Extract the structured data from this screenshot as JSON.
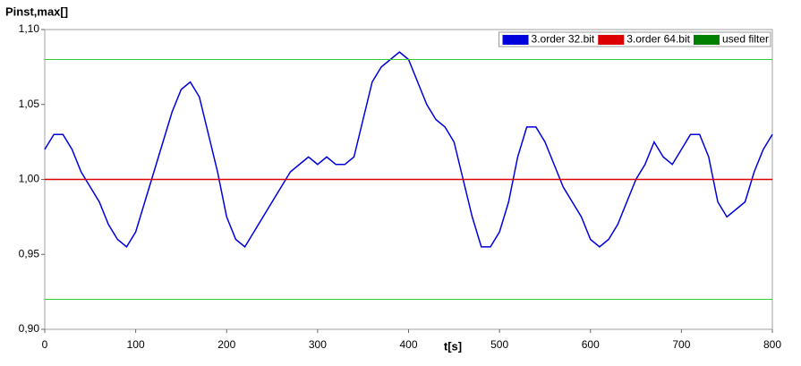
{
  "chart_data": {
    "type": "line",
    "title": "Pinst,max[]",
    "x_label": "t[s]",
    "x": [
      0,
      10,
      20,
      30,
      40,
      50,
      60,
      70,
      80,
      90,
      100,
      110,
      120,
      130,
      140,
      150,
      160,
      170,
      180,
      190,
      200,
      210,
      220,
      230,
      240,
      250,
      260,
      270,
      280,
      290,
      300,
      310,
      320,
      330,
      340,
      350,
      360,
      370,
      380,
      390,
      400,
      410,
      420,
      430,
      440,
      450,
      460,
      470,
      480,
      490,
      500,
      510,
      520,
      530,
      540,
      550,
      560,
      570,
      580,
      590,
      600,
      610,
      620,
      630,
      640,
      650,
      660,
      670,
      680,
      690,
      700,
      710,
      720,
      730,
      740,
      750,
      760,
      770,
      780,
      790,
      800
    ],
    "series": [
      {
        "name": "3.order 32.bit",
        "color": "#0000dd",
        "values": [
          1.02,
          1.03,
          1.03,
          1.02,
          1.005,
          0.995,
          0.985,
          0.97,
          0.96,
          0.955,
          0.965,
          0.985,
          1.005,
          1.025,
          1.045,
          1.06,
          1.065,
          1.055,
          1.03,
          1.005,
          0.975,
          0.96,
          0.955,
          0.965,
          0.975,
          0.985,
          0.995,
          1.005,
          1.01,
          1.015,
          1.01,
          1.015,
          1.01,
          1.01,
          1.015,
          1.04,
          1.065,
          1.075,
          1.08,
          1.085,
          1.08,
          1.065,
          1.05,
          1.04,
          1.035,
          1.025,
          1.0,
          0.975,
          0.955,
          0.955,
          0.965,
          0.985,
          1.015,
          1.035,
          1.035,
          1.025,
          1.01,
          0.995,
          0.985,
          0.975,
          0.96,
          0.955,
          0.96,
          0.97,
          0.985,
          1.0,
          1.01,
          1.025,
          1.015,
          1.01,
          1.02,
          1.03,
          1.03,
          1.015,
          0.985,
          0.975,
          0.98,
          0.985,
          1.005,
          1.02,
          1.03
        ]
      },
      {
        "name": "3.order 64.bit",
        "color": "#dd0000",
        "values": [
          1,
          1,
          1,
          1,
          1,
          1,
          1,
          1,
          1,
          1,
          1,
          1,
          1,
          1,
          1,
          1,
          1,
          1,
          1,
          1,
          1,
          1,
          1,
          1,
          1,
          1,
          1,
          1,
          1,
          1,
          1,
          1,
          1,
          1,
          1,
          1,
          1,
          1,
          1,
          1,
          1,
          1,
          1,
          1,
          1,
          1,
          1,
          1,
          1,
          1,
          1,
          1,
          1,
          1,
          1,
          1,
          1,
          1,
          1,
          1,
          1,
          1,
          1,
          1,
          1,
          1,
          1,
          1,
          1,
          1,
          1,
          1,
          1,
          1,
          1,
          1,
          1,
          1,
          1,
          1,
          1
        ]
      },
      {
        "name": "used filter",
        "color": "#008000",
        "line_color": "#33cc33",
        "levels": [
          1.08,
          0.92
        ]
      }
    ],
    "xlim": [
      0,
      800
    ],
    "xticks": [
      0,
      100,
      200,
      300,
      400,
      500,
      600,
      700,
      800
    ],
    "ylim": [
      0.9,
      1.1
    ],
    "yticks": [
      {
        "value": 0.9,
        "label": "0,90"
      },
      {
        "value": 0.95,
        "label": "0,95"
      },
      {
        "value": 1.0,
        "label": "1,00"
      },
      {
        "value": 1.05,
        "label": "1,05"
      },
      {
        "value": 1.1,
        "label": "1,10"
      }
    ],
    "legend": "top-right",
    "grid": false
  }
}
